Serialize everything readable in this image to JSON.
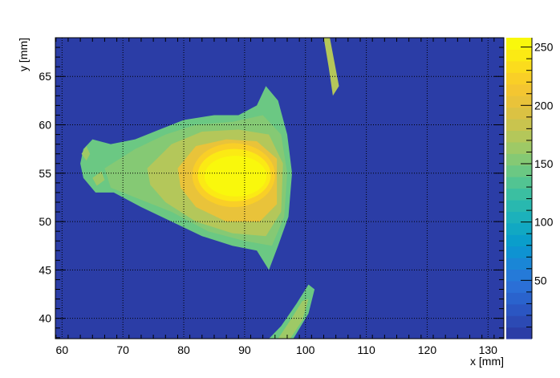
{
  "chart_data": {
    "type": "heatmap",
    "title": "",
    "xlabel": "x [mm]",
    "ylabel": "y [mm]",
    "xlim": [
      58.9,
      132.6
    ],
    "ylim": [
      37.9,
      69.0
    ],
    "x_ticks": [
      60,
      70,
      80,
      90,
      100,
      110,
      120,
      130
    ],
    "y_ticks": [
      40,
      45,
      50,
      55,
      60,
      65
    ],
    "grid": true,
    "colorbar": {
      "range": [
        0,
        258
      ],
      "ticks": [
        50,
        100,
        150,
        200,
        250
      ],
      "colors": [
        "#2b3da6",
        "#2c4ab4",
        "#2b56c2",
        "#2a63cd",
        "#2b6fd6",
        "#257ad8",
        "#1a86d6",
        "#0e93d2",
        "#0a9ecb",
        "#11a8c3",
        "#1cb1bb",
        "#29b8af",
        "#3bbfa1",
        "#52c492",
        "#6bc883",
        "#85c974",
        "#9ec966",
        "#b4c75a",
        "#c9c44e",
        "#dbc243",
        "#e9c33a",
        "#f4c631",
        "#f9cf27",
        "#fbdc1d",
        "#fbea14",
        "#f9f80c"
      ]
    },
    "blobs": [
      {
        "shape": "polygon",
        "level": 14,
        "points": [
          [
            63.5,
            57.5
          ],
          [
            65.0,
            58.5
          ],
          [
            68.0,
            58.0
          ],
          [
            72.0,
            58.5
          ],
          [
            76.0,
            59.5
          ],
          [
            80.0,
            60.5
          ],
          [
            85.0,
            61.0
          ],
          [
            89.0,
            61.0
          ],
          [
            92.0,
            62.0
          ],
          [
            93.5,
            64.0
          ],
          [
            95.5,
            62.5
          ],
          [
            97.0,
            59.0
          ],
          [
            97.8,
            55.0
          ],
          [
            97.2,
            50.5
          ],
          [
            95.5,
            47.5
          ],
          [
            94.0,
            45.0
          ],
          [
            92.0,
            47.0
          ],
          [
            88.0,
            47.5
          ],
          [
            83.0,
            48.5
          ],
          [
            78.0,
            50.0
          ],
          [
            73.0,
            51.5
          ],
          [
            68.5,
            53.0
          ],
          [
            65.5,
            53.0
          ],
          [
            63.5,
            54.5
          ],
          [
            63.0,
            56.0
          ]
        ]
      },
      {
        "shape": "polygon",
        "level": 15,
        "points": [
          [
            67.0,
            55.5
          ],
          [
            72.0,
            57.5
          ],
          [
            77.0,
            59.0
          ],
          [
            82.0,
            60.0
          ],
          [
            88.0,
            60.3
          ],
          [
            93.0,
            61.0
          ],
          [
            96.0,
            59.0
          ],
          [
            97.0,
            55.0
          ],
          [
            96.5,
            50.5
          ],
          [
            94.5,
            47.5
          ],
          [
            90.0,
            48.0
          ],
          [
            84.0,
            49.0
          ],
          [
            78.0,
            51.0
          ],
          [
            72.0,
            52.5
          ],
          [
            68.0,
            53.5
          ]
        ]
      },
      {
        "shape": "polygon",
        "level": 17,
        "points": [
          [
            74.0,
            55.5
          ],
          [
            78.0,
            58.0
          ],
          [
            83.0,
            59.3
          ],
          [
            89.0,
            59.5
          ],
          [
            94.0,
            59.0
          ],
          [
            96.3,
            56.0
          ],
          [
            96.0,
            51.0
          ],
          [
            93.5,
            48.5
          ],
          [
            88.0,
            48.8
          ],
          [
            82.0,
            50.0
          ],
          [
            77.0,
            52.0
          ],
          [
            74.5,
            53.8
          ]
        ]
      },
      {
        "shape": "polygon",
        "level": 20,
        "points": [
          [
            79.0,
            55.5
          ],
          [
            82.0,
            57.8
          ],
          [
            87.0,
            58.5
          ],
          [
            92.0,
            58.3
          ],
          [
            95.3,
            56.5
          ],
          [
            95.3,
            51.8
          ],
          [
            92.5,
            50.0
          ],
          [
            87.0,
            50.0
          ],
          [
            82.0,
            51.5
          ],
          [
            79.5,
            53.5
          ]
        ]
      },
      {
        "shape": "ellipse",
        "level": 22,
        "cx": 88.2,
        "cy": 54.8,
        "rx": 6.8,
        "ry": 3.3
      },
      {
        "shape": "ellipse",
        "level": 24,
        "cx": 88.3,
        "cy": 54.8,
        "rx": 6.0,
        "ry": 2.7
      },
      {
        "shape": "ellipse",
        "level": 25,
        "cx": 88.5,
        "cy": 54.7,
        "rx": 5.1,
        "ry": 2.1
      },
      {
        "shape": "ellipse",
        "level": 25,
        "cx": 88.3,
        "cy": 54.8,
        "rx": 4.0,
        "ry": 1.4
      },
      {
        "shape": "polygon",
        "level": 17,
        "points": [
          [
            103.0,
            69.0
          ],
          [
            104.0,
            69.0
          ],
          [
            105.5,
            64.0
          ],
          [
            104.5,
            63.0
          ],
          [
            103.8,
            66.0
          ]
        ]
      },
      {
        "shape": "polygon",
        "level": 14,
        "points": [
          [
            94.0,
            37.9
          ],
          [
            98.0,
            37.9
          ],
          [
            100.5,
            40.5
          ],
          [
            101.5,
            43.0
          ],
          [
            100.5,
            43.5
          ],
          [
            98.5,
            41.5
          ],
          [
            96.0,
            39.2
          ]
        ]
      },
      {
        "shape": "polygon",
        "level": 16,
        "points": [
          [
            95.5,
            37.9
          ],
          [
            97.5,
            37.9
          ],
          [
            99.5,
            39.8
          ],
          [
            100.5,
            42.0
          ],
          [
            99.5,
            41.8
          ],
          [
            97.5,
            39.8
          ]
        ]
      },
      {
        "shape": "polygon",
        "level": 16,
        "points": [
          [
            63.2,
            57.0
          ],
          [
            64.0,
            57.8
          ],
          [
            64.6,
            57.0
          ],
          [
            64.0,
            56.3
          ]
        ]
      },
      {
        "shape": "polygon",
        "level": 16,
        "points": [
          [
            65.0,
            54.5
          ],
          [
            66.5,
            55.2
          ],
          [
            67.0,
            54.3
          ],
          [
            65.7,
            53.7
          ]
        ]
      }
    ]
  }
}
